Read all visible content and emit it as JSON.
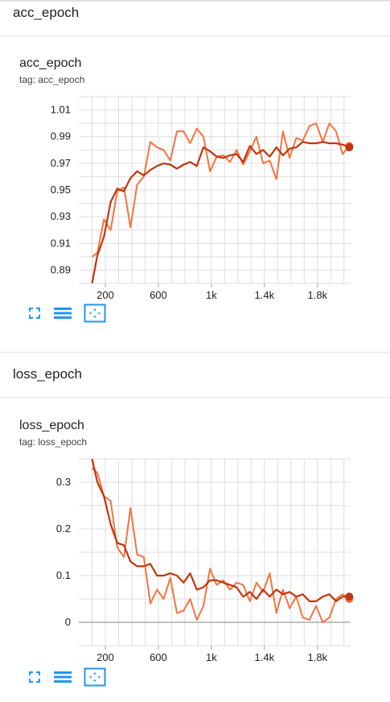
{
  "sections": [
    {
      "heading": "acc_epoch",
      "card_title": "acc_epoch",
      "tag_line": "tag: acc_epoch"
    },
    {
      "heading": "loss_epoch",
      "card_title": "loss_epoch",
      "tag_line": "tag: loss_epoch"
    }
  ],
  "toolbar_icons": [
    "fullscreen-icon",
    "data-series-icon",
    "fit-domain-icon"
  ],
  "colors": {
    "smoothed": "#bf360c",
    "raw": "#f4733f",
    "grid": "#dddddd",
    "toolbar": "#2196f3"
  },
  "chart_data": [
    {
      "type": "line",
      "xlim": [
        0,
        2050
      ],
      "ylim": [
        0.88,
        1.02
      ],
      "x_ticks": [
        200,
        600,
        1000,
        1400,
        1800
      ],
      "x_tick_labels": [
        "200",
        "600",
        "1k",
        "1.4k",
        "1.8k"
      ],
      "y_ticks": [
        0.89,
        0.91,
        0.93,
        0.95,
        0.97,
        0.99,
        1.01
      ],
      "y_tick_labels": [
        "0.89",
        "0.91",
        "0.93",
        "0.95",
        "0.97",
        "0.99",
        "1.01"
      ],
      "grid": true,
      "series": [
        {
          "x": [
            100,
            140,
            190,
            240,
            290,
            340,
            390,
            440,
            490,
            540,
            590,
            640,
            690,
            740,
            790,
            840,
            890,
            940,
            990,
            1040,
            1090,
            1140,
            1190,
            1240,
            1290,
            1340,
            1390,
            1440,
            1490,
            1540,
            1590,
            1640,
            1690,
            1740,
            1790,
            1840,
            1890,
            1940,
            1990,
            2040
          ],
          "values": [
            0.88,
            0.901,
            0.915,
            0.941,
            0.951,
            0.949,
            0.959,
            0.964,
            0.961,
            0.965,
            0.968,
            0.97,
            0.969,
            0.966,
            0.969,
            0.971,
            0.968,
            0.982,
            0.979,
            0.975,
            0.974,
            0.976,
            0.977,
            0.971,
            0.983,
            0.977,
            0.98,
            0.975,
            0.982,
            0.976,
            0.981,
            0.982,
            0.986,
            0.985,
            0.985,
            0.986,
            0.985,
            0.985,
            0.984,
            0.982
          ]
        },
        {
          "x": [
            100,
            140,
            190,
            240,
            290,
            340,
            390,
            440,
            490,
            540,
            590,
            640,
            690,
            740,
            790,
            840,
            890,
            940,
            990,
            1040,
            1090,
            1140,
            1190,
            1240,
            1290,
            1340,
            1390,
            1440,
            1490,
            1540,
            1590,
            1640,
            1690,
            1740,
            1790,
            1840,
            1890,
            1940,
            1990,
            2040
          ],
          "values": [
            0.9,
            0.903,
            0.928,
            0.92,
            0.949,
            0.952,
            0.922,
            0.954,
            0.96,
            0.986,
            0.982,
            0.98,
            0.972,
            0.994,
            0.994,
            0.985,
            0.996,
            0.99,
            0.964,
            0.975,
            0.976,
            0.971,
            0.98,
            0.969,
            0.979,
            0.99,
            0.97,
            0.972,
            0.958,
            0.994,
            0.974,
            0.989,
            0.987,
            0.998,
            1.0,
            0.986,
            1.0,
            0.994,
            0.977,
            0.983
          ]
        }
      ]
    },
    {
      "type": "line",
      "xlim": [
        0,
        2050
      ],
      "ylim": [
        -0.05,
        0.35
      ],
      "x_ticks": [
        200,
        600,
        1000,
        1400,
        1800
      ],
      "x_tick_labels": [
        "200",
        "600",
        "1k",
        "1.4k",
        "1.8k"
      ],
      "y_ticks": [
        0,
        0.1,
        0.2,
        0.3
      ],
      "y_tick_labels": [
        "0",
        "0.1",
        "0.2",
        "0.3"
      ],
      "grid": true,
      "series": [
        {
          "x": [
            100,
            140,
            190,
            240,
            290,
            340,
            390,
            440,
            490,
            540,
            590,
            640,
            690,
            740,
            790,
            840,
            890,
            940,
            990,
            1040,
            1090,
            1140,
            1190,
            1240,
            1290,
            1340,
            1390,
            1440,
            1490,
            1540,
            1590,
            1640,
            1690,
            1740,
            1790,
            1840,
            1890,
            1940,
            1990,
            2040
          ],
          "values": [
            0.35,
            0.3,
            0.27,
            0.21,
            0.17,
            0.165,
            0.13,
            0.12,
            0.12,
            0.125,
            0.1,
            0.1,
            0.105,
            0.1,
            0.085,
            0.105,
            0.07,
            0.075,
            0.09,
            0.09,
            0.085,
            0.08,
            0.075,
            0.055,
            0.065,
            0.05,
            0.07,
            0.055,
            0.07,
            0.06,
            0.065,
            0.055,
            0.06,
            0.045,
            0.045,
            0.055,
            0.06,
            0.045,
            0.055,
            0.055
          ]
        },
        {
          "x": [
            100,
            140,
            190,
            240,
            290,
            340,
            390,
            440,
            490,
            540,
            590,
            640,
            690,
            740,
            790,
            840,
            890,
            940,
            990,
            1040,
            1090,
            1140,
            1190,
            1240,
            1290,
            1340,
            1390,
            1440,
            1490,
            1540,
            1590,
            1640,
            1690,
            1740,
            1790,
            1840,
            1890,
            1940,
            1990,
            2040
          ],
          "values": [
            0.33,
            0.32,
            0.27,
            0.26,
            0.16,
            0.14,
            0.245,
            0.145,
            0.14,
            0.04,
            0.07,
            0.05,
            0.095,
            0.02,
            0.025,
            0.05,
            0.005,
            0.035,
            0.115,
            0.08,
            0.09,
            0.07,
            0.085,
            0.08,
            0.045,
            0.085,
            0.065,
            0.105,
            0.02,
            0.07,
            0.03,
            0.055,
            0.01,
            0.005,
            0.035,
            0.0,
            0.01,
            0.05,
            0.06,
            0.05
          ]
        }
      ]
    }
  ]
}
